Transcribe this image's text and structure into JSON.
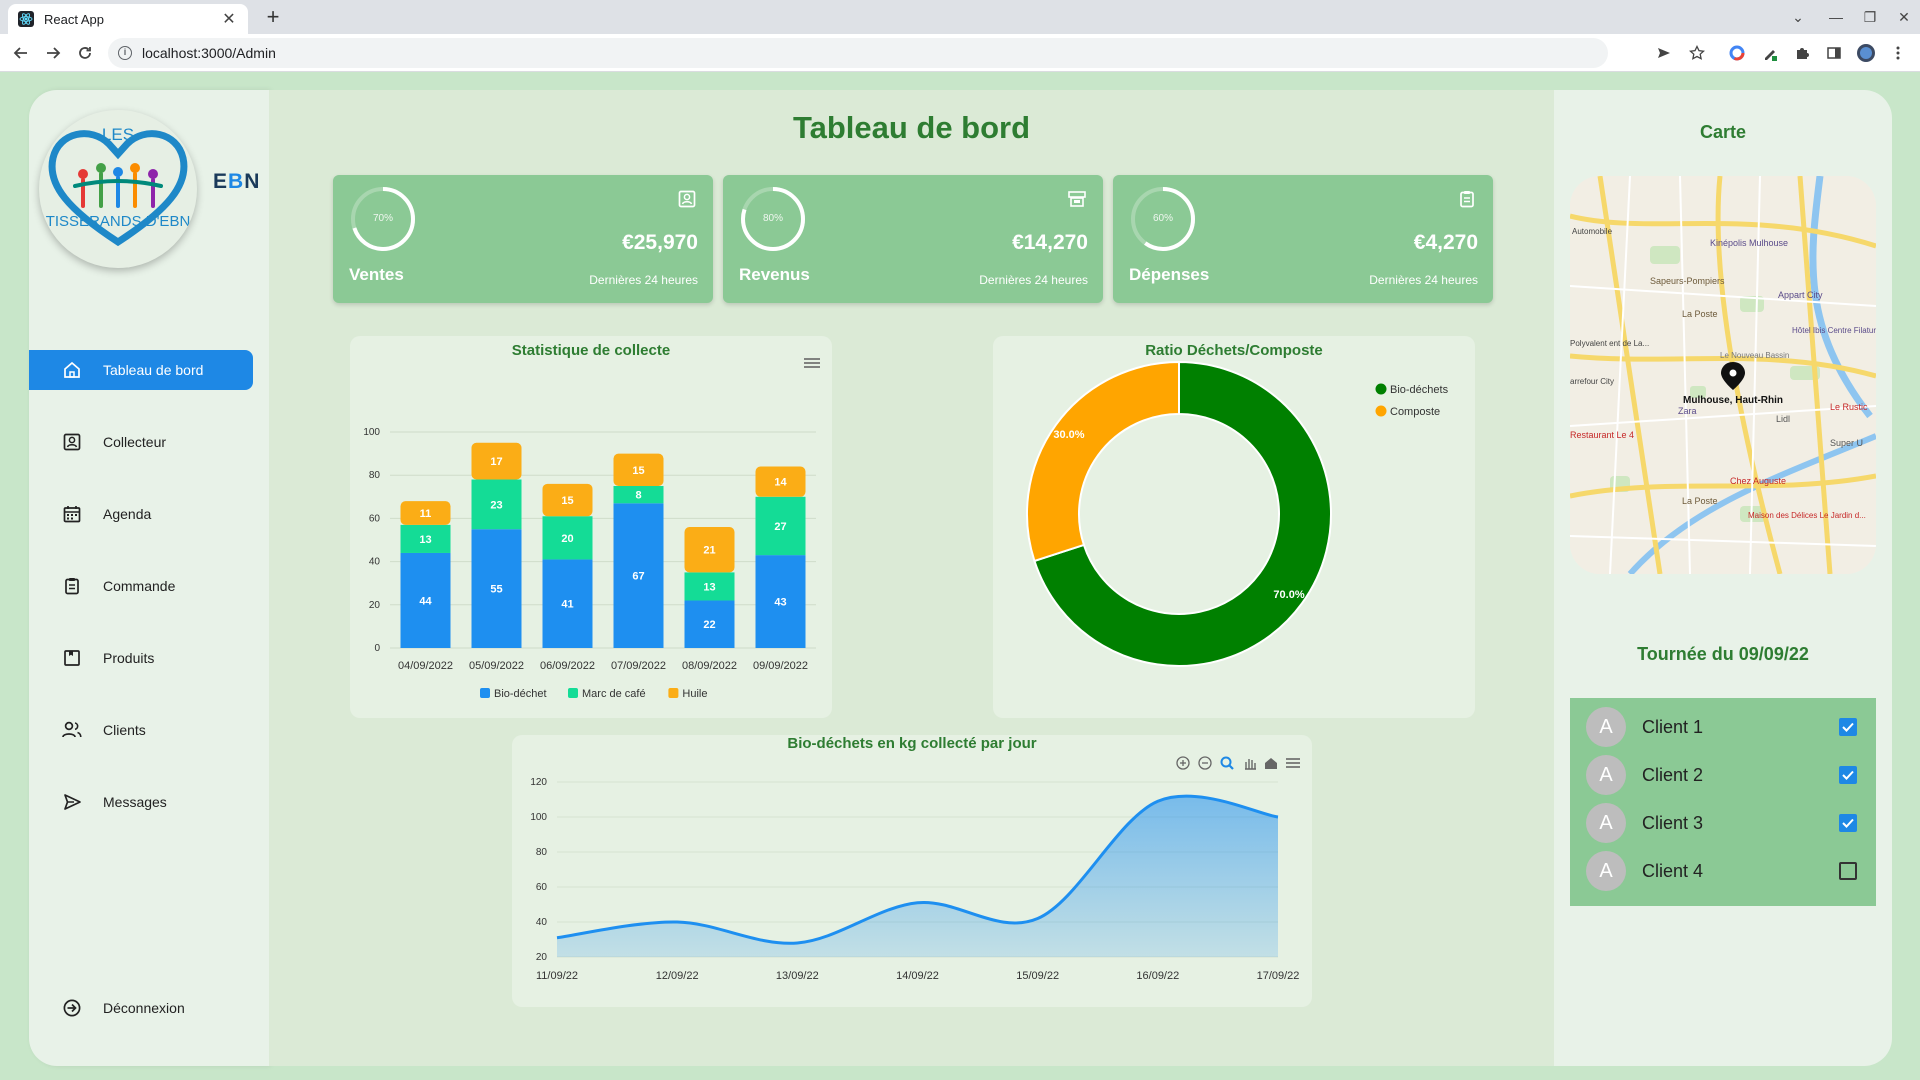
{
  "browser": {
    "tab_title": "React App",
    "url": "localhost:3000/Admin"
  },
  "sidebar": {
    "brand": {
      "e": "E",
      "b": "B",
      "n": "N"
    },
    "logo_text": [
      "LES",
      "TISSERANDS D'EBN"
    ],
    "items": [
      {
        "label": "Tableau de bord",
        "icon": "home-icon",
        "active": true
      },
      {
        "label": "Collecteur",
        "icon": "contact-icon"
      },
      {
        "label": "Agenda",
        "icon": "calendar-icon"
      },
      {
        "label": "Commande",
        "icon": "clipboard-icon"
      },
      {
        "label": "Produits",
        "icon": "product-icon"
      },
      {
        "label": "Clients",
        "icon": "users-icon"
      },
      {
        "label": "Messages",
        "icon": "send-icon"
      }
    ],
    "logout": "Déconnexion"
  },
  "main": {
    "title": "Tableau de bord",
    "stats": [
      {
        "label": "Ventes",
        "amount": "€25,970",
        "sub": "Dernières 24 heures",
        "percent": 70,
        "percent_label": "70%",
        "icon": "contact-icon"
      },
      {
        "label": "Revenus",
        "amount": "€14,270",
        "sub": "Dernières 24 heures",
        "percent": 80,
        "percent_label": "80%",
        "icon": "cash-register-icon"
      },
      {
        "label": "Dépenses",
        "amount": "€4,270",
        "sub": "Dernières 24 heures",
        "percent": 60,
        "percent_label": "60%",
        "icon": "clipboard-icon"
      }
    ]
  },
  "chart_data": [
    {
      "type": "bar",
      "stacked": true,
      "title": "Statistique de collecte",
      "categories": [
        "04/09/2022",
        "05/09/2022",
        "06/09/2022",
        "07/09/2022",
        "08/09/2022",
        "09/09/2022"
      ],
      "series": [
        {
          "name": "Bio-déchet",
          "color": "#1e8ff0",
          "values": [
            44,
            55,
            41,
            67,
            22,
            43
          ]
        },
        {
          "name": "Marc de café",
          "color": "#14dc96",
          "values": [
            13,
            23,
            20,
            8,
            13,
            27
          ]
        },
        {
          "name": "Huile",
          "color": "#fbad16",
          "values": [
            11,
            17,
            15,
            15,
            21,
            14
          ]
        }
      ],
      "yticks": [
        "0",
        "20",
        "40",
        "60",
        "80",
        "100"
      ],
      "ylim": [
        0,
        100
      ],
      "legend": "bottom"
    },
    {
      "type": "pie",
      "donut": true,
      "title": "Ratio Déchets/Composte",
      "slices": [
        {
          "name": "Bio-déchets",
          "value": 70,
          "label": "70.0%",
          "color": "#008000"
        },
        {
          "name": "Composte",
          "value": 30,
          "label": "30.0%",
          "color": "#ffa500"
        }
      ],
      "legend": "top-right"
    },
    {
      "type": "area",
      "title": "Bio-déchets en kg collecté par jour",
      "x": [
        "11/09/22",
        "12/09/22",
        "13/09/22",
        "14/09/22",
        "15/09/22",
        "16/09/22",
        "17/09/22"
      ],
      "values": [
        31,
        40,
        28,
        51,
        42,
        109,
        100
      ],
      "yticks": [
        "20",
        "40",
        "60",
        "80",
        "100",
        "120"
      ],
      "ylim": [
        20,
        120
      ],
      "color": "#1e8ff0"
    }
  ],
  "right": {
    "map_title": "Carte",
    "map_marker": "Mulhouse, Haut-Rhin",
    "map_labels": [
      "Kinépolis Mulhouse",
      "Sapeurs-Pompiers",
      "La Poste",
      "Appart City",
      "Hôtel Ibis Centre Filature",
      "Le Nouveau Bassin",
      "Zara",
      "Le Rustic",
      "Restaurant Le 4",
      "Chez Auguste",
      "Maison des Délices Le Jardin d...",
      "Super U",
      "Lidl",
      "La Poste",
      "Automobile",
      "arrefour City",
      "Polyvalent ent de La..."
    ],
    "tour_title": "Tournée du 09/09/22",
    "clients": [
      {
        "avatar": "A",
        "name": "Client 1",
        "checked": true
      },
      {
        "avatar": "A",
        "name": "Client 2",
        "checked": true
      },
      {
        "avatar": "A",
        "name": "Client 3",
        "checked": true
      },
      {
        "avatar": "A",
        "name": "Client 4",
        "checked": false
      }
    ]
  }
}
